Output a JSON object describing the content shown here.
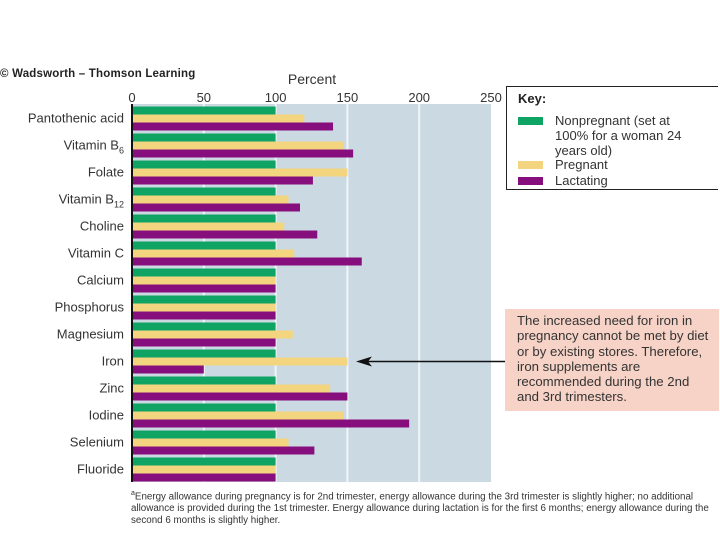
{
  "credit": "© Wadsworth – Thomson Learning",
  "chart_data": {
    "type": "bar",
    "orientation": "horizontal",
    "title": "",
    "xlabel": "Percent",
    "ylabel": "",
    "xlim": [
      0,
      250
    ],
    "xticks": [
      0,
      50,
      100,
      150,
      200,
      250
    ],
    "grid": true,
    "categories": [
      "Pantothenic acid",
      "Vitamin B6",
      "Folate",
      "Vitamin B12",
      "Choline",
      "Vitamin C",
      "Calcium",
      "Phosphorus",
      "Magnesium",
      "Iron",
      "Zinc",
      "Iodine",
      "Selenium",
      "Fluoride"
    ],
    "category_labels": [
      {
        "main": "Pantothenic acid",
        "sub": ""
      },
      {
        "main": "Vitamin B",
        "sub": "6"
      },
      {
        "main": "Folate",
        "sub": ""
      },
      {
        "main": "Vitamin B",
        "sub": "12"
      },
      {
        "main": "Choline",
        "sub": ""
      },
      {
        "main": "Vitamin C",
        "sub": ""
      },
      {
        "main": "Calcium",
        "sub": ""
      },
      {
        "main": "Phosphorus",
        "sub": ""
      },
      {
        "main": "Magnesium",
        "sub": ""
      },
      {
        "main": "Iron",
        "sub": ""
      },
      {
        "main": "Zinc",
        "sub": ""
      },
      {
        "main": "Iodine",
        "sub": ""
      },
      {
        "main": "Selenium",
        "sub": ""
      },
      {
        "main": "Fluoride",
        "sub": ""
      }
    ],
    "series": [
      {
        "name": "Nonpregnant (set at 100% for a woman 24 years old)",
        "color": "#0fa464",
        "values": [
          100,
          100,
          100,
          100,
          100,
          100,
          100,
          100,
          100,
          100,
          100,
          100,
          100,
          100
        ]
      },
      {
        "name": "Pregnant",
        "color": "#f3d57f",
        "values": [
          120,
          147,
          150,
          109,
          106,
          113,
          100,
          100,
          112,
          150,
          138,
          147,
          109,
          100
        ]
      },
      {
        "name": "Lactating",
        "color": "#870f7d",
        "values": [
          140,
          154,
          126,
          117,
          129,
          160,
          100,
          100,
          100,
          50,
          150,
          193,
          127,
          100
        ]
      }
    ],
    "legend": {
      "title": "Key:",
      "placement": "right"
    },
    "annotation": {
      "target": "Iron",
      "text": "The increased need for iron in pregnancy cannot be met by diet or by existing stores. Therefore, iron supplements are recommended during the 2nd and 3rd trimesters."
    }
  },
  "colors": {
    "plot_bg": "#cbd9e2",
    "grid": "#f2f5f7",
    "note_bg": "#f6d3c6"
  },
  "key": {
    "title": "Key:",
    "items": [
      {
        "label": "Nonpregnant (set at 100% for a woman 24 years old)"
      },
      {
        "label": "Pregnant"
      },
      {
        "label": "Lactating"
      }
    ]
  },
  "footnote": {
    "marker": "a",
    "text": "Energy allowance during pregnancy is for 2nd trimester, energy allowance during the 3rd trimester is slightly higher; no additional allowance is provided during the 1st trimester. Energy allowance during lactation is for the first 6 months; energy allowance during the second 6 months is slightly higher."
  }
}
